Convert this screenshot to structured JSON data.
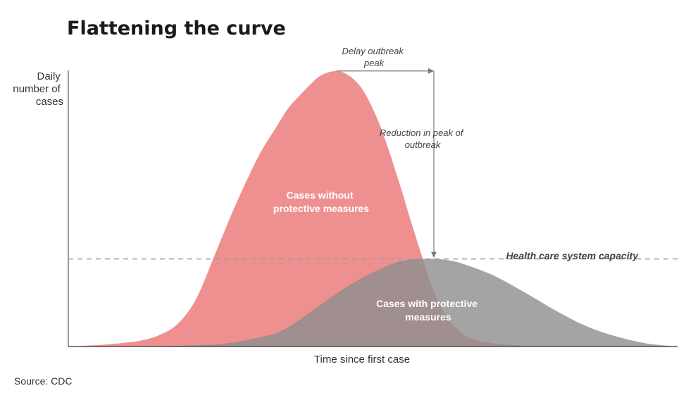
{
  "chart_data": {
    "type": "area",
    "title": "Flattening the curve",
    "xlabel": "Time since first case",
    "ylabel": [
      "Daily",
      "number of",
      "cases"
    ],
    "source": "Source: CDC",
    "grid": false,
    "xlim": [
      0,
      100
    ],
    "ylim": [
      0,
      100
    ],
    "series": [
      {
        "label_lines": [
          "Cases without",
          "protective measures"
        ],
        "color": "#ee8a8a",
        "opacity": 0.95,
        "x": [
          0,
          3,
          6,
          9,
          12,
          15,
          18,
          21,
          24,
          27,
          30,
          32,
          34,
          36,
          38,
          40,
          41,
          42,
          43,
          44,
          45,
          46,
          47,
          48,
          49,
          50,
          51,
          52,
          53,
          54,
          55,
          56,
          57,
          58,
          59,
          60,
          61,
          62,
          63,
          64,
          65,
          66,
          67,
          68,
          70,
          72,
          74,
          76,
          78,
          80,
          84,
          88,
          92,
          96,
          100
        ],
        "y": [
          0,
          0.3,
          0.7,
          1.3,
          2.2,
          4.2,
          8.3,
          17.3,
          33,
          49,
          63.5,
          72,
          79,
          86,
          91,
          95.5,
          97.5,
          98.8,
          99.5,
          99.8,
          99.4,
          98.2,
          96.5,
          94,
          90.5,
          86,
          81,
          75,
          68.5,
          61.5,
          54.5,
          47,
          40,
          33,
          26,
          20,
          15,
          11,
          8,
          6,
          4.2,
          3,
          2.3,
          1.7,
          1.1,
          0.7,
          0.4,
          0.2,
          0.1,
          0.05,
          0,
          0,
          0,
          0,
          0
        ]
      },
      {
        "label_lines": [
          "Cases with protective",
          "measures"
        ],
        "color": "#8d8d8d",
        "opacity": 0.8,
        "x": [
          0,
          5,
          10,
          15,
          20,
          25,
          30,
          35,
          40,
          45,
          50,
          55,
          60,
          63,
          66,
          70,
          75,
          80,
          85,
          90,
          95,
          100
        ],
        "y": [
          0,
          0,
          0,
          0,
          0.4,
          0.9,
          2.7,
          5.7,
          12.9,
          20.6,
          26.9,
          31.1,
          31.7,
          31,
          29,
          25.5,
          19.5,
          13,
          7.4,
          3.6,
          1.1,
          0
        ]
      }
    ],
    "capacity": {
      "label": "Health care system capacity",
      "y": 31.7,
      "dash_color": "#9a9a9a"
    },
    "annotations": {
      "delay_peak": [
        "Delay outbreak",
        "peak"
      ],
      "reduction_peak": [
        "Reduction in peak of",
        "outbreak"
      ],
      "arrow_color": "#777777",
      "from_peak": {
        "x": 44,
        "y": 99.8
      },
      "to_peak": {
        "x": 60,
        "y": 31.7
      }
    }
  }
}
